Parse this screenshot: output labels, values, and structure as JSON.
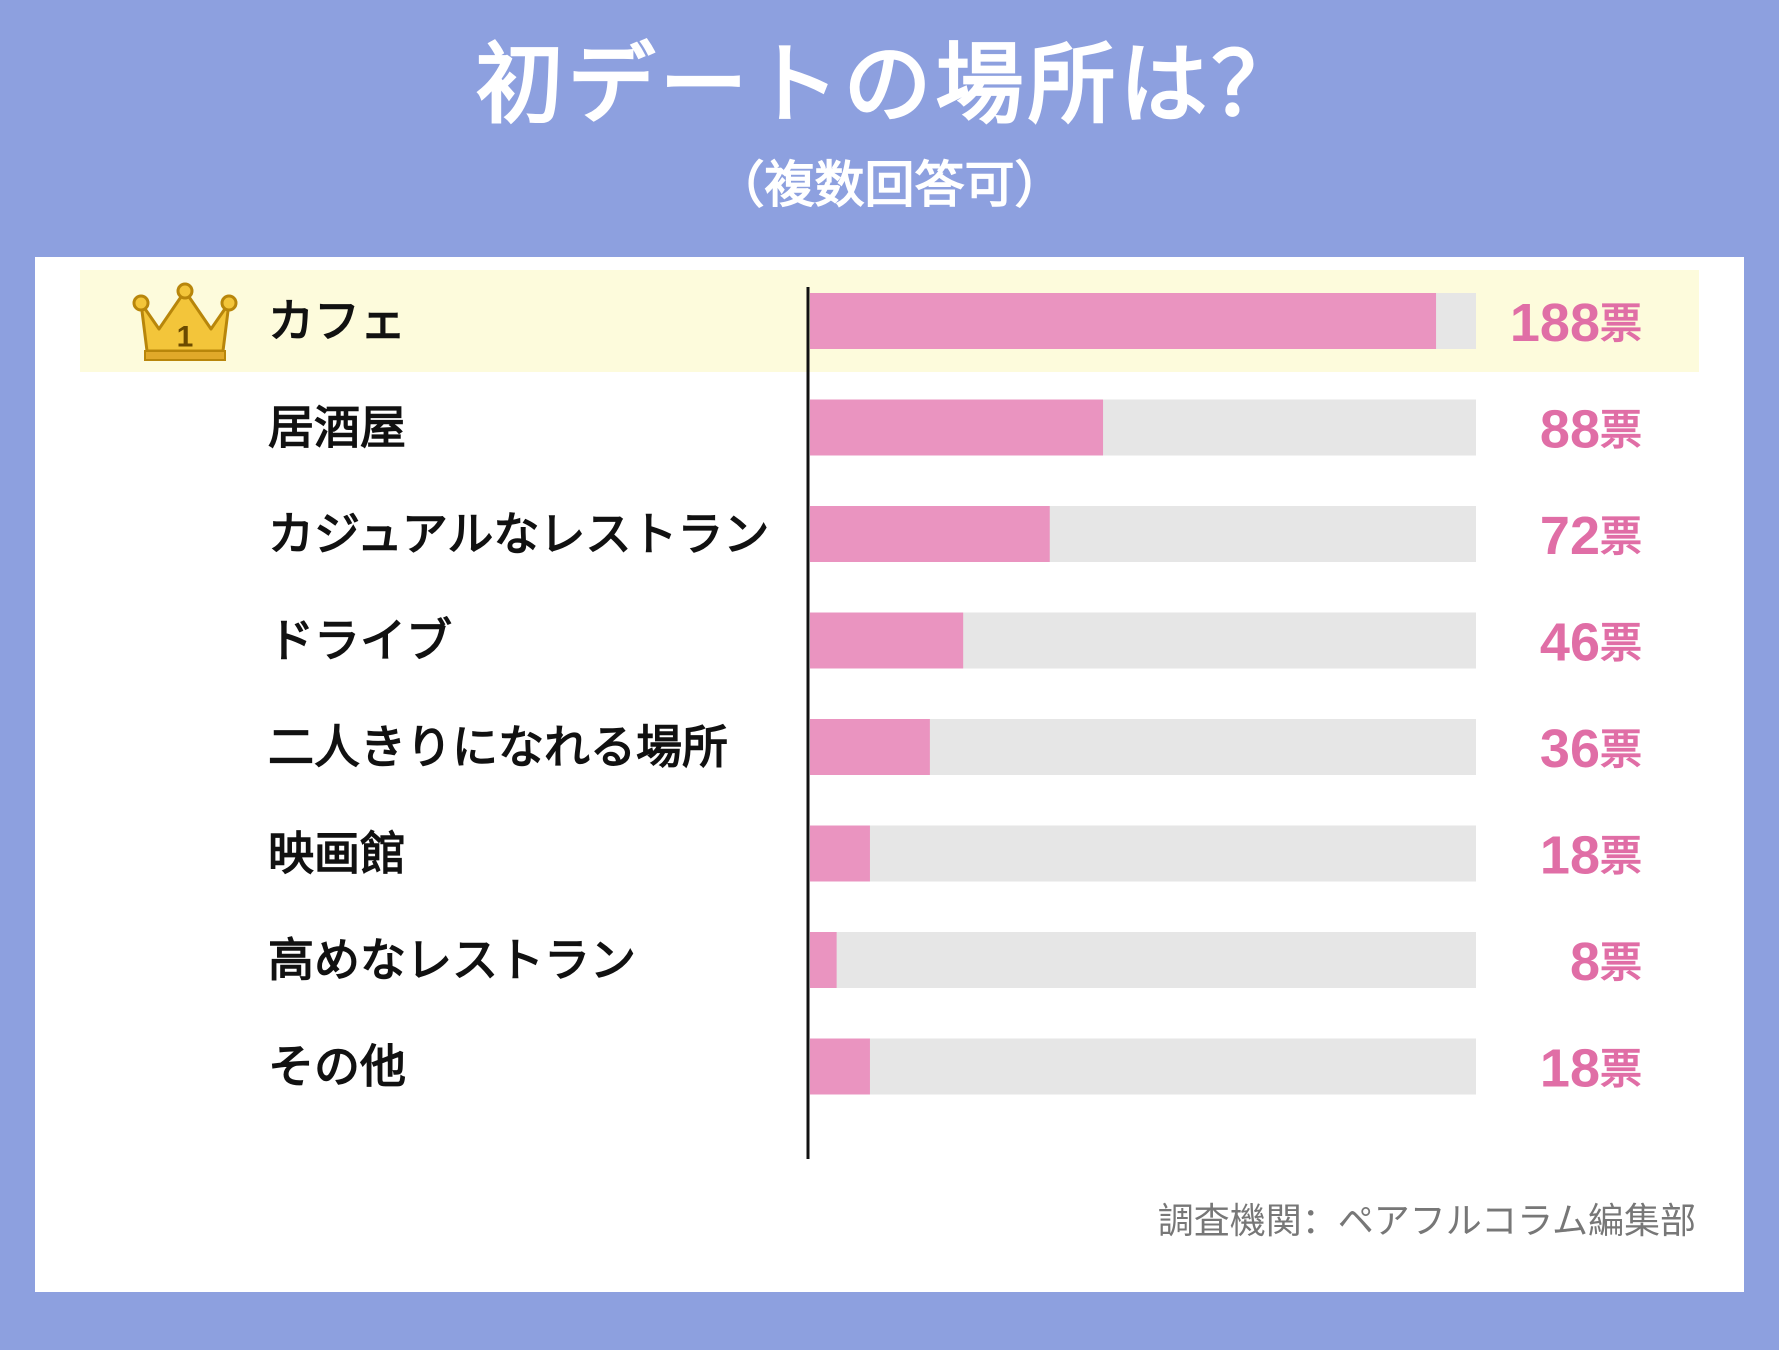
{
  "title": "初デートの場所は？",
  "subtitle": "（複数回答可）",
  "source": "調査機関：ペアフルコラム編集部",
  "colors": {
    "background": "#8da0df",
    "bar": "#ea94c0",
    "track": "#e6e6e6",
    "value_text": "#e06ea6",
    "highlight_row": "#fdfbdc",
    "crown": "#f3c53a"
  },
  "chart_data": {
    "type": "bar",
    "orientation": "horizontal",
    "title": "初デートの場所は？",
    "subtitle": "（複数回答可）",
    "unit": "票",
    "categories": [
      "カフェ",
      "居酒屋",
      "カジュアルなレストラン",
      "ドライブ",
      "二人きりになれる場所",
      "映画館",
      "高めなレストラン",
      "その他"
    ],
    "values": [
      188,
      88,
      72,
      46,
      36,
      18,
      8,
      18
    ],
    "xlim": [
      0,
      200
    ],
    "rank_badge": {
      "category": "カフェ",
      "rank": "1",
      "icon": "crown-icon"
    }
  }
}
